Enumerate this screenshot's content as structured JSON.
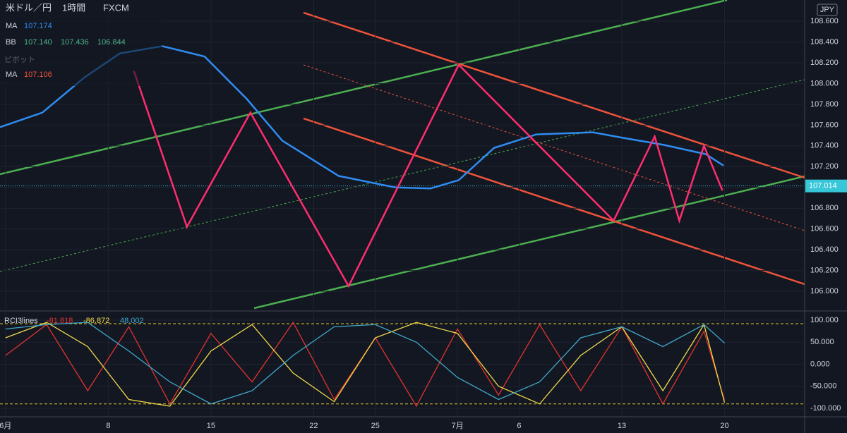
{
  "header": {
    "symbol": "米ドル／円",
    "interval": "1時間",
    "source": "FXCM",
    "currency": "JPY",
    "pivot": "ピボット"
  },
  "indicators": [
    {
      "name": "MA",
      "values": [
        107.174
      ],
      "color": "#2f8cf0"
    },
    {
      "name": "BB",
      "values": [
        107.14,
        107.436,
        106.844
      ],
      "value_labels": [
        "107.140",
        "107.436",
        "106.844"
      ],
      "color": "#4fb38a"
    },
    {
      "name": "MA",
      "values": [
        107.106
      ],
      "color": "#f0533a"
    }
  ],
  "chart_data": [
    {
      "type": "line",
      "last_price": 107.014,
      "xlim": [
        -0.27,
        38.9
      ],
      "xticks": [
        {
          "value": 0,
          "label": "6月"
        },
        {
          "value": 5,
          "label": "8"
        },
        {
          "value": 10,
          "label": "15"
        },
        {
          "value": 15,
          "label": "22"
        },
        {
          "value": 18,
          "label": "25"
        },
        {
          "value": 22,
          "label": "7月"
        },
        {
          "value": 25,
          "label": "6"
        },
        {
          "value": 30,
          "label": "13"
        },
        {
          "value": 35,
          "label": "20"
        }
      ],
      "ylim": [
        105.817,
        108.804
      ],
      "yticks": [
        {
          "value": 106,
          "label": "106.000"
        },
        {
          "value": 106.2,
          "label": "106.200"
        },
        {
          "value": 106.4,
          "label": "106.400"
        },
        {
          "value": 106.6,
          "label": "106.600"
        },
        {
          "value": 106.8,
          "label": "106.800"
        },
        {
          "value": 107,
          "label": "107.000"
        },
        {
          "value": 107.2,
          "label": "107.200"
        },
        {
          "value": 107.4,
          "label": "107.400"
        },
        {
          "value": 107.6,
          "label": "107.600"
        },
        {
          "value": 107.8,
          "label": "107.800"
        },
        {
          "value": 108,
          "label": "108.000"
        },
        {
          "value": 108.2,
          "label": "108.200"
        },
        {
          "value": 108.4,
          "label": "108.400"
        },
        {
          "value": 108.6,
          "label": "108.600"
        }
      ],
      "series": [
        {
          "color": "#2f8cf0",
          "x": [
            -0.27,
            1.79,
            3.85,
            5.57,
            7.63,
            9.69,
            11.75,
            13.47,
            16.22,
            18.97,
            20.69,
            22.06,
            23.78,
            25.84,
            28.59,
            29.97,
            32.03,
            34.09,
            34.95
          ],
          "values": [
            107.58,
            107.72,
            108.06,
            108.29,
            108.36,
            108.26,
            107.85,
            107.45,
            107.11,
            107.0,
            106.99,
            107.07,
            107.38,
            107.51,
            107.53,
            107.48,
            107.41,
            107.32,
            107.21
          ]
        },
        {
          "color": "#ff2d6f",
          "x": [
            6.25,
            8.83,
            11.92,
            16.7,
            22.06,
            29.6,
            31.6,
            32.8,
            34.0,
            34.9
          ],
          "values": [
            108.12,
            106.62,
            107.72,
            106.05,
            108.18,
            106.68,
            107.49,
            106.68,
            107.4,
            106.97
          ]
        }
      ]
    },
    {
      "type": "line",
      "title": "RCI3lines",
      "legend_values": [
        -81.818,
        -86.872,
        48.002
      ],
      "xlim": [
        -0.27,
        38.9
      ],
      "ylim": [
        -117.6,
        120.8
      ],
      "levels": [
        92,
        -90
      ],
      "yticks": [
        {
          "value": 100,
          "label": "100.000"
        },
        {
          "value": 50,
          "label": "50.000"
        },
        {
          "value": 0,
          "label": "0.000"
        },
        {
          "value": -50,
          "label": "-50.000"
        },
        {
          "value": -100,
          "label": "-100.000"
        }
      ],
      "x": [
        0,
        2,
        4,
        6,
        8,
        10,
        12,
        14,
        16,
        18,
        20,
        22,
        24,
        26,
        28,
        30,
        32,
        34,
        35
      ],
      "series": [
        {
          "color": "#e0332f",
          "values": [
            20,
            90,
            -60,
            85,
            -90,
            70,
            -40,
            95,
            -80,
            60,
            -95,
            80,
            -70,
            90,
            -60,
            85,
            -90,
            75,
            -82
          ]
        },
        {
          "color": "#f2d94a",
          "values": [
            60,
            95,
            40,
            -80,
            -95,
            30,
            90,
            -20,
            -85,
            60,
            95,
            70,
            -50,
            -90,
            20,
            85,
            -60,
            90,
            -87
          ]
        },
        {
          "color": "#3fa7c9",
          "values": [
            80,
            90,
            95,
            30,
            -40,
            -90,
            -60,
            20,
            85,
            90,
            50,
            -30,
            -80,
            -40,
            60,
            85,
            40,
            90,
            48
          ]
        }
      ]
    }
  ]
}
